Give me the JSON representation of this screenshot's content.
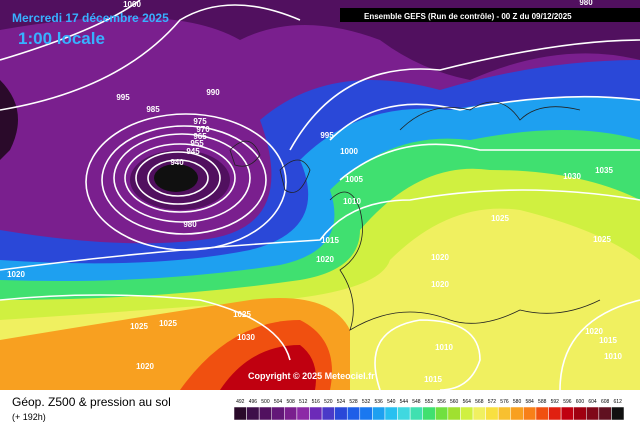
{
  "header": {
    "date": "Mercredi 17 décembre 2025",
    "time": "1:00 locale",
    "run": "Ensemble GEFS  (Run de contrôle)  - 00 Z du 09/12/2025"
  },
  "footer": {
    "title": "Géop. Z500 & pression au sol",
    "lead": "(+ 192h)",
    "copyright": "Copyright © 2025 Meteociel.fr"
  },
  "isobar_labels": [
    "1000",
    "980",
    "995",
    "990",
    "985",
    "975",
    "970",
    "965",
    "955",
    "945",
    "940",
    "980",
    "995",
    "1000",
    "1005",
    "1010",
    "1015",
    "1020",
    "1020",
    "1025",
    "1025",
    "1025",
    "1030",
    "1020",
    "1030",
    "1035",
    "1025",
    "1025",
    "1020",
    "1020",
    "1010",
    "1015",
    "1020",
    "1015",
    "1010"
  ],
  "color_scale": [
    {
      "label": "492",
      "color": "#2a0a2a"
    },
    {
      "label": "496",
      "color": "#3e0f4a"
    },
    {
      "label": "500",
      "color": "#51105f"
    },
    {
      "label": "504",
      "color": "#631778"
    },
    {
      "label": "508",
      "color": "#7a1f8e"
    },
    {
      "label": "512",
      "color": "#8c2aa6"
    },
    {
      "label": "516",
      "color": "#6c2ab8"
    },
    {
      "label": "520",
      "color": "#4a3ac8"
    },
    {
      "label": "524",
      "color": "#2a48d8"
    },
    {
      "label": "528",
      "color": "#1e5ee8"
    },
    {
      "label": "532",
      "color": "#1a78f0"
    },
    {
      "label": "536",
      "color": "#1ea0f0"
    },
    {
      "label": "540",
      "color": "#28c0f0"
    },
    {
      "label": "544",
      "color": "#40d8e0"
    },
    {
      "label": "548",
      "color": "#40e0b0"
    },
    {
      "label": "552",
      "color": "#40e070"
    },
    {
      "label": "556",
      "color": "#70e040"
    },
    {
      "label": "560",
      "color": "#a0e030"
    },
    {
      "label": "564",
      "color": "#d0f040"
    },
    {
      "label": "568",
      "color": "#f0f060"
    },
    {
      "label": "572",
      "color": "#f8e040"
    },
    {
      "label": "576",
      "color": "#f8c030"
    },
    {
      "label": "580",
      "color": "#f8a020"
    },
    {
      "label": "584",
      "color": "#f88018"
    },
    {
      "label": "588",
      "color": "#f05010"
    },
    {
      "label": "592",
      "color": "#e02010"
    },
    {
      "label": "596",
      "color": "#c00010"
    },
    {
      "label": "600",
      "color": "#a00010"
    },
    {
      "label": "604",
      "color": "#800818"
    },
    {
      "label": "608",
      "color": "#601020"
    },
    {
      "label": "612",
      "color": "#101010"
    }
  ]
}
